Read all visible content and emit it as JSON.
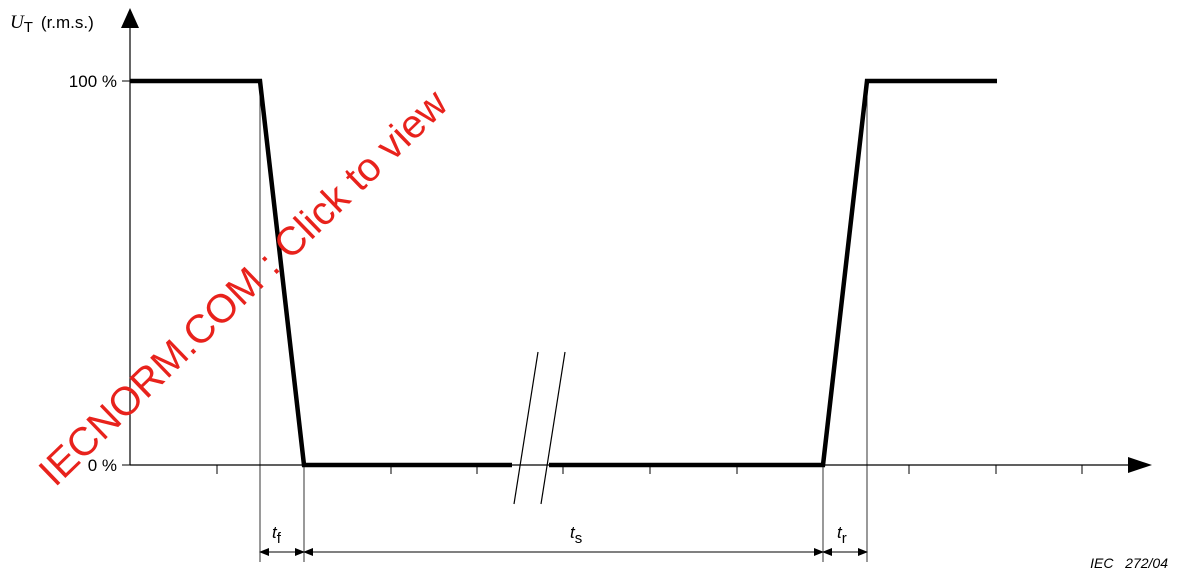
{
  "y_axis": {
    "symbol": "U",
    "subscript": "T",
    "suffix": "(r.m.s.)",
    "label_100": "100 %",
    "label_0": "0 %"
  },
  "timing": {
    "tf_symbol": "t",
    "tf_sub": "f",
    "ts_symbol": "t",
    "ts_sub": "s",
    "tr_symbol": "t",
    "tr_sub": "r"
  },
  "figure_ref": "IEC   272/04",
  "watermark": "IECNORM.COM : Click to view"
}
